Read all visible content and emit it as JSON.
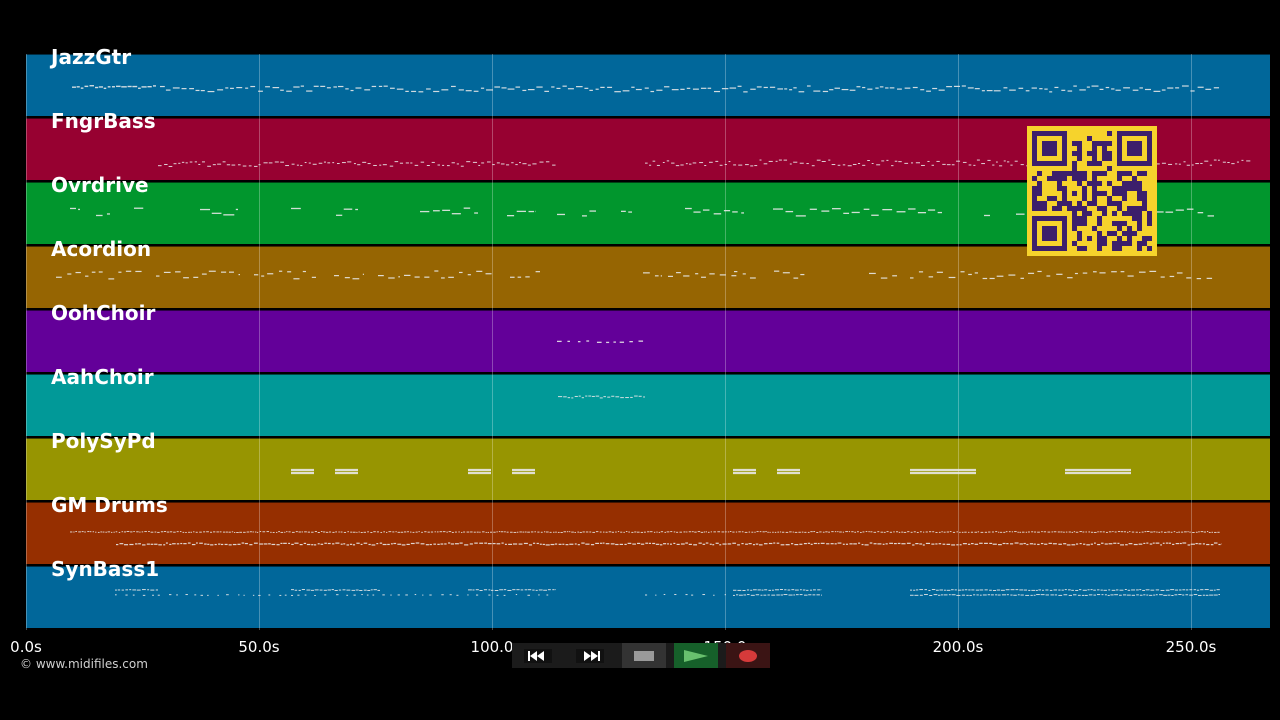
{
  "window": {
    "background": "#000000"
  },
  "tracks": [
    {
      "name": "JazzGtr",
      "color": "#01679a"
    },
    {
      "name": "FngrBass",
      "color": "#970131"
    },
    {
      "name": "Ovrdrive",
      "color": "#01962d"
    },
    {
      "name": "Acordion",
      "color": "#966502"
    },
    {
      "name": "OohChoir",
      "color": "#630099"
    },
    {
      "name": "AahChoir",
      "color": "#019998"
    },
    {
      "name": "PolySyPd",
      "color": "#979501"
    },
    {
      "name": "GM Drums",
      "color": "#962f00"
    },
    {
      "name": "SynBass1",
      "color": "#01679a"
    }
  ],
  "timeline": {
    "unit": "s",
    "max_seconds": 266.5,
    "ticks": [
      "0.0s",
      "50.0s",
      "100.0",
      "150.0",
      "200.0s",
      "250.0s"
    ],
    "tick_values": [
      0,
      50,
      100,
      150,
      200,
      250
    ]
  },
  "footer": {
    "copyright": "© www.midifiles.com"
  },
  "transport": {
    "buttons": [
      {
        "name": "rewind-icon",
        "glyph": "◀◀"
      },
      {
        "name": "fast-forward-icon",
        "glyph": "▶▶"
      },
      {
        "name": "stop-icon",
        "glyph": "■"
      },
      {
        "name": "play-icon",
        "glyph": "▶"
      },
      {
        "name": "record-icon",
        "glyph": "●"
      }
    ],
    "active": "play"
  },
  "qr_code": {
    "color": "#3c1f6b",
    "background": "#f6d32c"
  }
}
